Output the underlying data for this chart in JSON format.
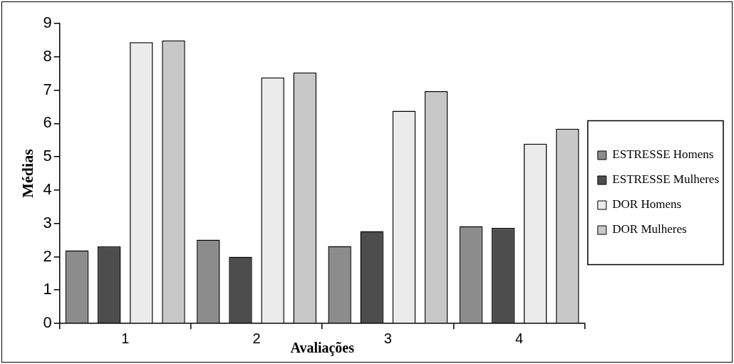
{
  "chart_data": {
    "type": "bar",
    "xlabel": "Avaliações",
    "ylabel": "Médias",
    "categories": [
      "1",
      "2",
      "3",
      "4"
    ],
    "series": [
      {
        "name": "ESTRESSE Homens",
        "color": "#8c8c8c",
        "values": [
          2.19,
          2.51,
          2.32,
          2.92
        ]
      },
      {
        "name": "ESTRESSE Mulheres",
        "color": "#4d4d4d",
        "values": [
          2.31,
          2.0,
          2.77,
          2.87
        ]
      },
      {
        "name": "DOR Homens",
        "color": "#ebebeb",
        "values": [
          8.44,
          7.38,
          6.38,
          5.39
        ]
      },
      {
        "name": "DOR Mulheres",
        "color": "#c8c8c8",
        "values": [
          8.49,
          7.53,
          6.97,
          5.84
        ]
      }
    ],
    "ylim": [
      0,
      9
    ],
    "yticks": [
      0,
      1,
      2,
      3,
      4,
      5,
      6,
      7,
      8,
      9
    ],
    "grid": false,
    "legend": "right"
  }
}
